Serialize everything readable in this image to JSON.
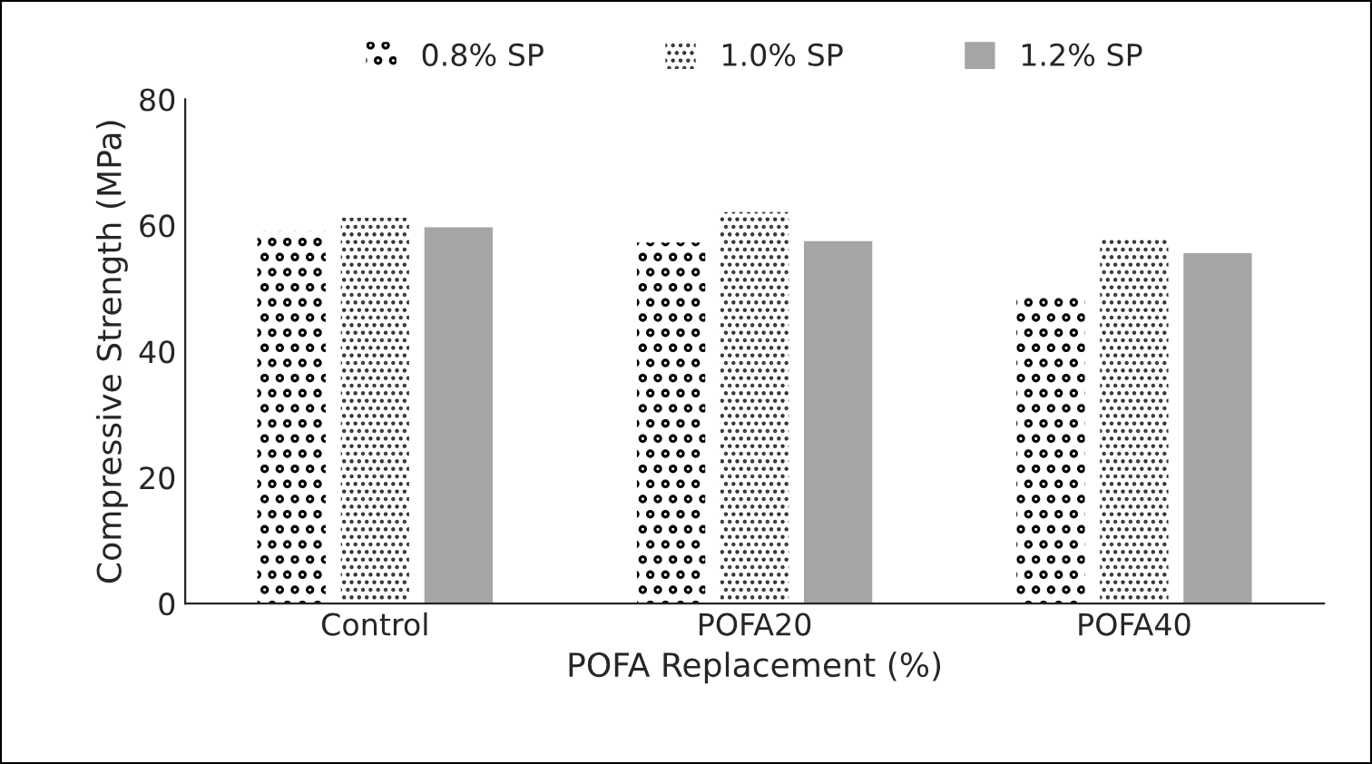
{
  "chart_data": {
    "type": "bar",
    "xlabel": "POFA Replacement (%)",
    "ylabel": "Compressive Strength (MPa)",
    "categories": [
      "Control",
      "POFA20",
      "POFA40"
    ],
    "series": [
      {
        "name": "0.8% SP",
        "color": "#000000",
        "values": [
          59.1,
          57.3,
          49.4
        ]
      },
      {
        "name": "1.0% SP",
        "color": "#333333",
        "values": [
          61.2,
          62.1,
          58.1
        ]
      },
      {
        "name": "1.2% SP",
        "color": "#a5a5a5",
        "values": [
          59.7,
          57.5,
          55.6
        ]
      }
    ],
    "ylim": [
      0,
      80
    ],
    "yticks": [
      0,
      20,
      40,
      60,
      80
    ],
    "grid": false,
    "legend": "top"
  }
}
